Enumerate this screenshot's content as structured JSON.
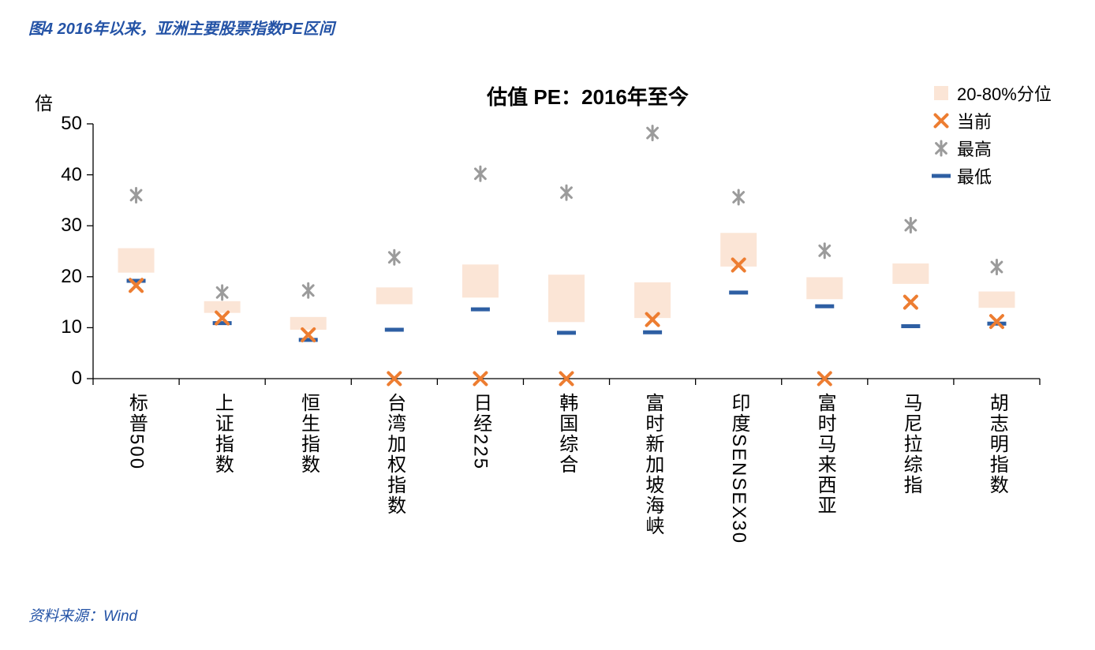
{
  "figure_title": "图4 2016年以来，亚洲主要股票指数PE区间",
  "source": "资料来源：Wind",
  "chart_data": {
    "type": "range-marker",
    "title": "估值 PE：2016年至今",
    "y_unit_label": "倍",
    "ylim": [
      0,
      50
    ],
    "yticks": [
      0,
      10,
      20,
      30,
      40,
      50
    ],
    "grid": false,
    "legend_position": "top-right",
    "colors": {
      "box": "#FBE5D6",
      "x": "#ED7D31",
      "asterisk": "#9B9B9B",
      "dash": "#2E5FA3"
    },
    "legend": [
      {
        "label": "20-80%分位",
        "marker": "box"
      },
      {
        "label": "当前",
        "marker": "x"
      },
      {
        "label": "最高",
        "marker": "asterisk"
      },
      {
        "label": "最低",
        "marker": "dash"
      }
    ],
    "points": [
      {
        "category": "标普500",
        "p20": 20.8,
        "p80": 25.6,
        "current": 18.3,
        "min": 19.2,
        "max": 36.0
      },
      {
        "category": "上证指数",
        "p20": 12.9,
        "p80": 15.2,
        "current": 11.9,
        "min": 10.9,
        "max": 16.9
      },
      {
        "category": "恒生指数",
        "p20": 9.6,
        "p80": 12.1,
        "current": 8.6,
        "min": 7.6,
        "max": 17.3
      },
      {
        "category": "台湾加权指数",
        "p20": 14.6,
        "p80": 17.9,
        "current": 0,
        "min": 9.6,
        "max": 23.8
      },
      {
        "category": "日经225",
        "p20": 15.9,
        "p80": 22.4,
        "current": 0,
        "min": 13.6,
        "max": 40.2
      },
      {
        "category": "韩国综合",
        "p20": 11.1,
        "p80": 20.4,
        "current": 0,
        "min": 9.0,
        "max": 36.5
      },
      {
        "category": "富时新加坡海峡",
        "p20": 11.9,
        "p80": 18.9,
        "current": 11.6,
        "min": 9.1,
        "max": 48.2
      },
      {
        "category": "印度SENSEX30",
        "p20": 22.0,
        "p80": 28.6,
        "current": 22.3,
        "min": 16.9,
        "max": 35.6
      },
      {
        "category": "富时马来西亚",
        "p20": 15.6,
        "p80": 19.9,
        "current": 0,
        "min": 14.2,
        "max": 25.1
      },
      {
        "category": "马尼拉综指",
        "p20": 18.6,
        "p80": 22.6,
        "current": 15.0,
        "min": 10.3,
        "max": 30.1
      },
      {
        "category": "胡志明指数",
        "p20": 13.9,
        "p80": 17.1,
        "current": 11.2,
        "min": 10.8,
        "max": 21.9
      }
    ]
  }
}
